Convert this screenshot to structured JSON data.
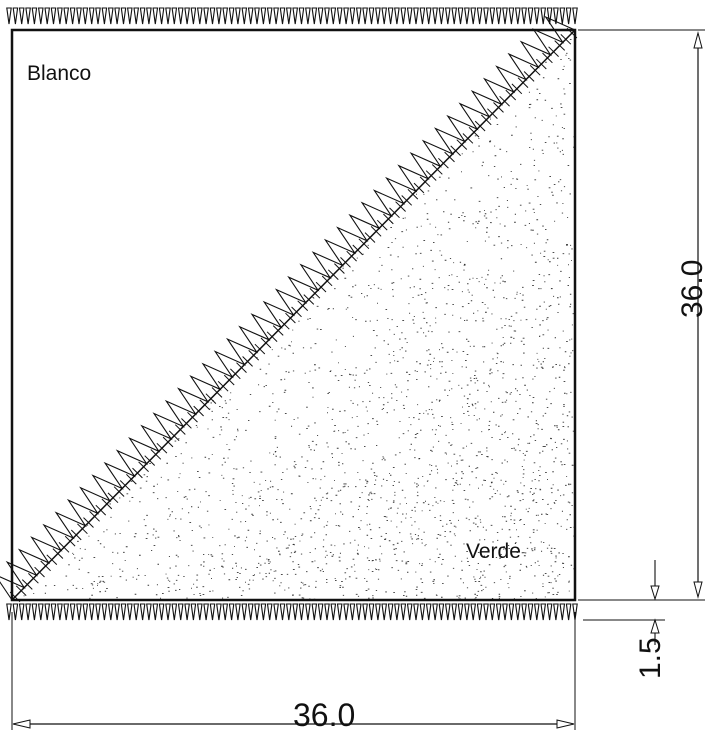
{
  "labels": {
    "top_left_region": "Blanco",
    "bottom_right_region": "Verde"
  },
  "dimensions": {
    "width": "36.0",
    "height": "36.0",
    "fringe": "1.5"
  },
  "colors": {
    "ink": "#111111",
    "stipple": "#333333",
    "background": "#ffffff"
  }
}
